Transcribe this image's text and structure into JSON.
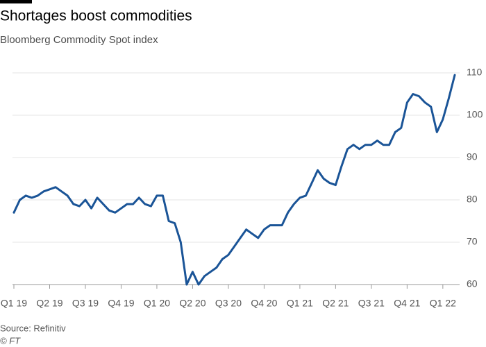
{
  "chart_data": {
    "type": "line",
    "title": "Shortages boost commodities",
    "subtitle": "Bloomberg Commodity Spot index",
    "source": "Source: Refinitiv",
    "credit": "© FT",
    "series": [
      {
        "name": "Bloomberg Commodity Spot index",
        "color": "#1a5497",
        "values": [
          77,
          80,
          81,
          80.5,
          81,
          82,
          82.5,
          83,
          82,
          81,
          79,
          78.5,
          80,
          78,
          80.5,
          79,
          77.5,
          77,
          78,
          79,
          79,
          80.5,
          79,
          78.5,
          81,
          81,
          75,
          74.5,
          70,
          60,
          63,
          60,
          62,
          63,
          64,
          66,
          67,
          69,
          71,
          73,
          72,
          71,
          73,
          74,
          74,
          74,
          77,
          79,
          80.5,
          81,
          84,
          87,
          85,
          84,
          83.5,
          88,
          92,
          93,
          92,
          93,
          93,
          94,
          93,
          93,
          96,
          97,
          103,
          105,
          104.5,
          103,
          102,
          96,
          99,
          104,
          109.5
        ]
      }
    ],
    "xlim": [
      0,
      74
    ],
    "xticks": [
      {
        "value": 0,
        "label": "Q1 19"
      },
      {
        "value": 6,
        "label": "Q2 19"
      },
      {
        "value": 12,
        "label": "Q3 19"
      },
      {
        "value": 18,
        "label": "Q4 19"
      },
      {
        "value": 24,
        "label": "Q1 20"
      },
      {
        "value": 30,
        "label": "Q2 20"
      },
      {
        "value": 36,
        "label": "Q3 20"
      },
      {
        "value": 42,
        "label": "Q4 20"
      },
      {
        "value": 48,
        "label": "Q1 21"
      },
      {
        "value": 54,
        "label": "Q2 21"
      },
      {
        "value": 60,
        "label": "Q3 21"
      },
      {
        "value": 66,
        "label": "Q4 21"
      },
      {
        "value": 72,
        "label": "Q1 22"
      }
    ],
    "ylim": [
      60,
      110
    ],
    "yticks": [
      60,
      70,
      80,
      90,
      100,
      110
    ],
    "grid": true
  }
}
